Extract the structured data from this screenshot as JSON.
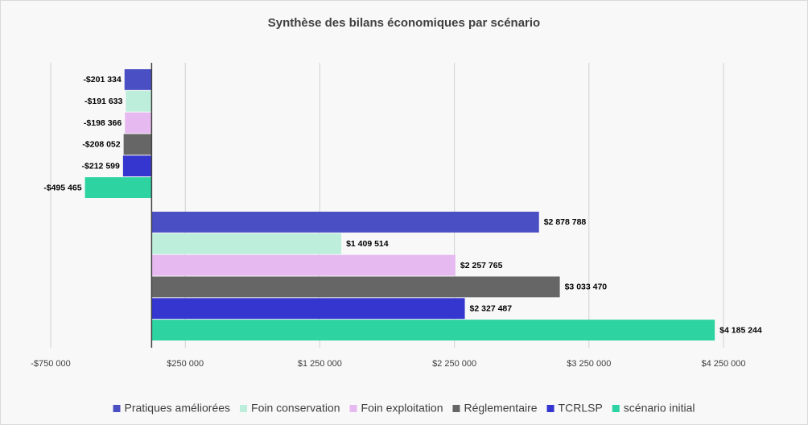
{
  "chart_data": {
    "type": "bar",
    "orientation": "horizontal",
    "title": "Synthèse des bilans économiques par scénario",
    "categories": [
      null,
      null
    ],
    "series": [
      {
        "name": "Pratiques améliorées",
        "color": "#4a4fc4",
        "values": [
          -201334,
          2878788
        ],
        "value_labels": [
          "-$201 334",
          "$2 878 788"
        ]
      },
      {
        "name": "Foin conservation",
        "color": "#bdeedb",
        "values": [
          -191633,
          1409514
        ],
        "value_labels": [
          "-$191 633",
          "$1 409 514"
        ]
      },
      {
        "name": "Foin exploitation",
        "color": "#e6b9f0",
        "values": [
          -198366,
          2257765
        ],
        "value_labels": [
          "-$198 366",
          "$2 257 765"
        ]
      },
      {
        "name": "Réglementaire",
        "color": "#666666",
        "values": [
          -208052,
          3033470
        ],
        "value_labels": [
          "-$208 052",
          "$3 033 470"
        ]
      },
      {
        "name": "TCRLSP",
        "color": "#3535d0",
        "values": [
          -212599,
          2327487
        ],
        "value_labels": [
          "-$212 599",
          "$2 327 487"
        ]
      },
      {
        "name": "scénario initial",
        "color": "#2ed3a2",
        "values": [
          -495465,
          4185244
        ],
        "value_labels": [
          "-$495 465",
          "$4 185 244"
        ]
      }
    ],
    "xlim": [
      -750000,
      4250000
    ],
    "xticks": [
      {
        "value": -750000,
        "label": "-$750 000"
      },
      {
        "value": 250000,
        "label": "$250 000"
      },
      {
        "value": 1250000,
        "label": "$1 250 000"
      },
      {
        "value": 2250000,
        "label": "$2 250 000"
      },
      {
        "value": 3250000,
        "label": "$3 250 000"
      },
      {
        "value": 4250000,
        "label": "$4 250 000"
      }
    ],
    "grid": true,
    "legend": "bottom"
  }
}
